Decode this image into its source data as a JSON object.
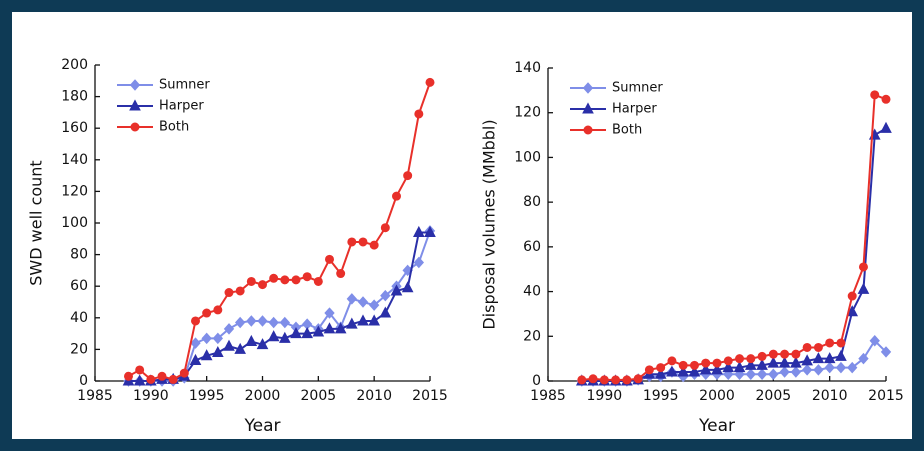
{
  "chart_data": [
    {
      "type": "line",
      "ylabel": "SWD well count",
      "xlabel": "Year",
      "x": [
        1988,
        1989,
        1990,
        1991,
        1992,
        1993,
        1994,
        1995,
        1996,
        1997,
        1998,
        1999,
        2000,
        2001,
        2002,
        2003,
        2004,
        2005,
        2006,
        2007,
        2008,
        2009,
        2010,
        2011,
        2012,
        2013,
        2014,
        2015
      ],
      "xlim": [
        1985,
        2015
      ],
      "xticks": [
        1985,
        1990,
        1995,
        2000,
        2005,
        2010,
        2015
      ],
      "ylim": [
        0,
        200
      ],
      "yticks": [
        0,
        20,
        40,
        60,
        80,
        100,
        120,
        140,
        160,
        180,
        200
      ],
      "legend": "upper left",
      "series": [
        {
          "name": "Sumner",
          "color": "#7f8ee8",
          "marker": "diamond",
          "values": [
            0,
            0,
            0,
            0,
            0,
            2,
            24,
            27,
            27,
            33,
            37,
            38,
            38,
            37,
            37,
            34,
            36,
            33,
            43,
            34,
            52,
            50,
            48,
            54,
            60,
            70,
            75,
            95
          ]
        },
        {
          "name": "Harper",
          "color": "#2a2fa8",
          "marker": "triangle",
          "values": [
            0,
            0,
            0,
            1,
            1,
            3,
            13,
            16,
            18,
            22,
            20,
            25,
            23,
            28,
            27,
            30,
            30,
            31,
            33,
            33,
            36,
            38,
            38,
            43,
            57,
            59,
            94,
            94
          ]
        },
        {
          "name": "Both",
          "color": "#e8302a",
          "marker": "circle",
          "values": [
            3,
            7,
            1,
            3,
            1,
            5,
            38,
            43,
            45,
            56,
            57,
            63,
            61,
            65,
            64,
            64,
            66,
            63,
            77,
            68,
            88,
            88,
            86,
            97,
            117,
            130,
            169,
            189
          ]
        }
      ]
    },
    {
      "type": "line",
      "ylabel": "Disposal volumes (MMbbl)",
      "xlabel": "Year",
      "x": [
        1988,
        1989,
        1990,
        1991,
        1992,
        1993,
        1994,
        1995,
        1996,
        1997,
        1998,
        1999,
        2000,
        2001,
        2002,
        2003,
        2004,
        2005,
        2006,
        2007,
        2008,
        2009,
        2010,
        2011,
        2012,
        2013,
        2014,
        2015
      ],
      "xlim": [
        1985,
        2015
      ],
      "xticks": [
        1985,
        1990,
        1995,
        2000,
        2005,
        2010,
        2015
      ],
      "ylim": [
        0,
        140
      ],
      "yticks": [
        0,
        20,
        40,
        60,
        80,
        100,
        120,
        140
      ],
      "legend": "upper left",
      "series": [
        {
          "name": "Sumner",
          "color": "#7f8ee8",
          "marker": "diamond",
          "values": [
            0,
            0,
            0,
            0,
            0,
            0.5,
            2,
            2,
            4,
            2,
            3,
            3,
            3,
            3,
            3,
            3,
            3,
            3,
            4,
            4,
            5,
            5,
            6,
            6,
            6,
            10,
            18,
            13
          ]
        },
        {
          "name": "Harper",
          "color": "#2a2fa8",
          "marker": "triangle",
          "values": [
            0,
            0,
            0,
            0,
            0,
            0.5,
            3,
            3,
            4,
            4,
            4,
            5,
            5,
            6,
            6,
            7,
            7,
            8,
            8,
            8,
            9,
            10,
            10,
            11,
            31,
            41,
            110,
            113
          ]
        },
        {
          "name": "Both",
          "color": "#e8302a",
          "marker": "circle",
          "values": [
            0.5,
            1,
            0.5,
            0.5,
            0.5,
            1,
            5,
            6,
            9,
            7,
            7,
            8,
            8,
            9,
            10,
            10,
            11,
            12,
            12,
            12,
            15,
            15,
            17,
            17,
            38,
            51,
            128,
            126
          ]
        }
      ]
    }
  ]
}
